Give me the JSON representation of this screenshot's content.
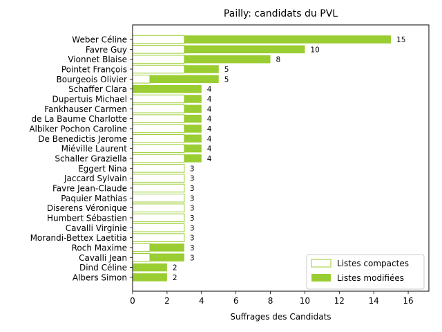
{
  "chart_data": {
    "type": "bar",
    "orientation": "horizontal",
    "stacked": true,
    "title": "Pailly: candidats du PVL",
    "xlabel": "Suffrages des Candidats",
    "ylabel": "",
    "xlim": [
      0,
      17.2
    ],
    "xticks": [
      0,
      2,
      4,
      6,
      8,
      10,
      12,
      14,
      16
    ],
    "grid": false,
    "legend_position": "bottom-right",
    "colors": {
      "accent": "#9acd32",
      "outline": "#9acd32",
      "fill_compact": "#ffffff"
    },
    "categories": [
      "Weber Céline",
      "Favre Guy",
      "Vionnet Blaise",
      "Pointet François",
      "Bourgeois Olivier",
      "Schaffer Clara",
      "Dupertuis Michael",
      "Fankhauser Carmen",
      "de La Baume Charlotte",
      "Albiker Pochon Caroline",
      "De Benedictis Jerome",
      "Miéville Laurent",
      "Schaller Graziella",
      "Eggert Nina",
      "Jaccard Sylvain",
      "Favre Jean-Claude",
      "Paquier Mathias",
      "Diserens Véronique",
      "Humbert Sébastien",
      "Cavalli Virginie",
      "Morandi-Bettex Laetitia",
      "Roch Maxime",
      "Cavalli Jean",
      "Dind Céline",
      "Albers Simon"
    ],
    "series": [
      {
        "name": "Listes compactes",
        "values": [
          3,
          3,
          3,
          3,
          1,
          0,
          3,
          3,
          3,
          3,
          3,
          3,
          3,
          3,
          3,
          3,
          3,
          3,
          3,
          3,
          3,
          1,
          1,
          0,
          0
        ]
      },
      {
        "name": "Listes modifiées",
        "values": [
          12,
          7,
          5,
          2,
          4,
          4,
          1,
          1,
          1,
          1,
          1,
          1,
          1,
          0,
          0,
          0,
          0,
          0,
          0,
          0,
          0,
          2,
          2,
          2,
          2
        ]
      }
    ],
    "totals": [
      15,
      10,
      8,
      5,
      5,
      4,
      4,
      4,
      4,
      4,
      4,
      4,
      4,
      3,
      3,
      3,
      3,
      3,
      3,
      3,
      3,
      3,
      3,
      2,
      2
    ]
  }
}
